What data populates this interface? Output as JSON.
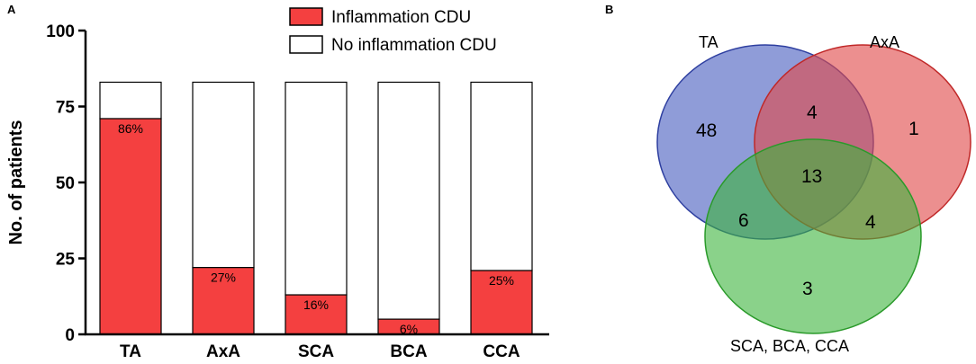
{
  "panel_a_label": "A",
  "panel_b_label": "B",
  "colors": {
    "inflammation": "#f44040",
    "no_inflammation": "#ffffff",
    "outline": "#000000",
    "venn_ta": "#4a5fc0",
    "venn_axa": "#e04a4a",
    "venn_other": "#3cb43c"
  },
  "chart_data": [
    {
      "type": "bar",
      "stacked": true,
      "title": "",
      "xlabel": "",
      "ylabel": "No. of patients",
      "ylim": [
        0,
        100
      ],
      "yticks": [
        "0",
        "25",
        "50",
        "75",
        "100"
      ],
      "categories": [
        "TA",
        "AxA",
        "SCA",
        "BCA",
        "CCA"
      ],
      "total_patients": 83,
      "series": [
        {
          "name": "Inflammation CDU",
          "values": [
            71,
            22,
            13,
            5,
            21
          ]
        },
        {
          "name": "No inflammation CDU",
          "values": [
            12,
            61,
            70,
            78,
            62
          ]
        }
      ],
      "data_labels": [
        "86%",
        "27%",
        "16%",
        "6%",
        "25%"
      ],
      "legend": [
        "Inflammation CDU",
        "No inflammation CDU"
      ],
      "legend_position": "top-right"
    },
    {
      "type": "venn",
      "sets": [
        "TA",
        "AxA",
        "SCA, BCA, CCA"
      ],
      "regions": {
        "ta_only": "48",
        "axa_only": "1",
        "other_only": "3",
        "ta_axa": "4",
        "ta_other": "6",
        "axa_other": "4",
        "all_three": "13"
      }
    }
  ]
}
